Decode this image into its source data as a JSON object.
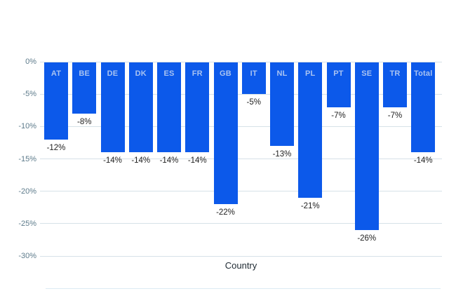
{
  "chart_data": {
    "type": "bar",
    "title": "",
    "xlabel": "Country",
    "ylabel": "",
    "categories": [
      "AT",
      "BE",
      "DE",
      "DK",
      "ES",
      "FR",
      "GB",
      "IT",
      "NL",
      "PL",
      "PT",
      "SE",
      "TR",
      "Total"
    ],
    "values": [
      -12,
      -8,
      -14,
      -14,
      -14,
      -14,
      -22,
      -5,
      -13,
      -21,
      -7,
      -26,
      -7,
      -14
    ],
    "data_labels": [
      "-12%",
      "-8%",
      "-14%",
      "-14%",
      "-14%",
      "-14%",
      "-22%",
      "-5%",
      "-13%",
      "-21%",
      "-7%",
      "-26%",
      "-7%",
      "-14%"
    ],
    "ylim": [
      -30,
      0
    ],
    "yticks": [
      0,
      -5,
      -10,
      -15,
      -20,
      -25,
      -30
    ],
    "ytick_labels": [
      "0%",
      "-5%",
      "-10%",
      "-15%",
      "-20%",
      "-25%",
      "-30%"
    ],
    "grid": true,
    "legend": "none",
    "colors": {
      "bar": "#0c59ea",
      "bar_category_text": "#a9c3f1",
      "data_label_text": "#1e1e1e",
      "axis_tick_text": "#5d7b8b",
      "gridline": "#d6e1e8",
      "x_title_text": "#1f2a33",
      "background": "#ffffff"
    }
  }
}
